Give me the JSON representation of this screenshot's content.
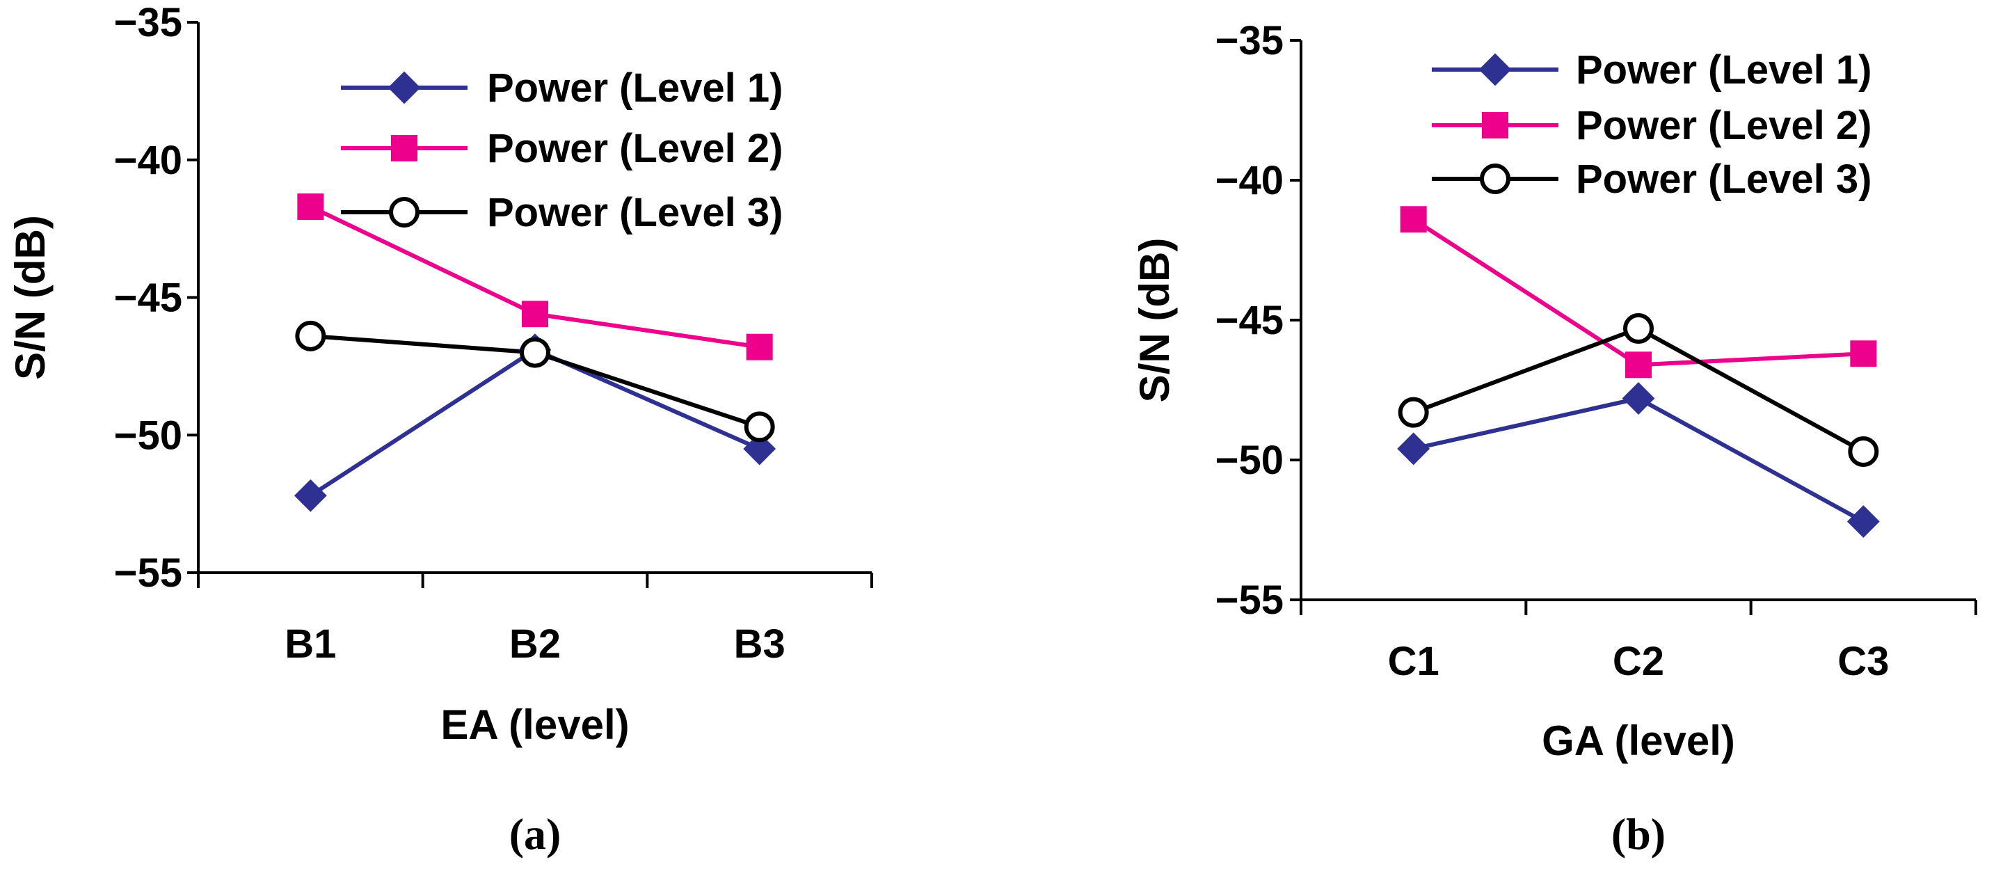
{
  "chart_data": [
    {
      "type": "line",
      "panel_label": "(a)",
      "xlabel": "EA (level)",
      "ylabel": "S/N (dB)",
      "categories": [
        "B1",
        "B2",
        "B3"
      ],
      "ylim": [
        -55,
        -35
      ],
      "yticks": [
        -35,
        -40,
        -45,
        -50,
        -55
      ],
      "ytick_labels": [
        "−35",
        "−40",
        "−45",
        "−50",
        "−55"
      ],
      "grid": false,
      "legend_position": "top-right",
      "series": [
        {
          "name": "Power (Level 1)",
          "color": "#2e3192",
          "marker": "diamond",
          "values": [
            -52.2,
            -46.9,
            -50.5
          ]
        },
        {
          "name": "Power (Level 2)",
          "color": "#ec008c",
          "marker": "square",
          "values": [
            -41.7,
            -45.6,
            -46.8
          ]
        },
        {
          "name": "Power (Level 3)",
          "color": "#000000",
          "marker": "open-circle",
          "values": [
            -46.4,
            -47.0,
            -49.7
          ]
        }
      ]
    },
    {
      "type": "line",
      "panel_label": "(b)",
      "xlabel": "GA (level)",
      "ylabel": "S/N (dB)",
      "categories": [
        "C1",
        "C2",
        "C3"
      ],
      "ylim": [
        -55,
        -35
      ],
      "yticks": [
        -35,
        -40,
        -45,
        -50,
        -55
      ],
      "ytick_labels": [
        "−35",
        "−40",
        "−45",
        "−50",
        "−55"
      ],
      "grid": false,
      "legend_position": "top-right",
      "series": [
        {
          "name": "Power (Level 1)",
          "color": "#2e3192",
          "marker": "diamond",
          "values": [
            -49.6,
            -47.8,
            -52.2
          ]
        },
        {
          "name": "Power (Level 2)",
          "color": "#ec008c",
          "marker": "square",
          "values": [
            -41.4,
            -46.6,
            -46.2
          ]
        },
        {
          "name": "Power (Level 3)",
          "color": "#000000",
          "marker": "open-circle",
          "values": [
            -48.3,
            -45.3,
            -49.7
          ]
        }
      ]
    }
  ]
}
